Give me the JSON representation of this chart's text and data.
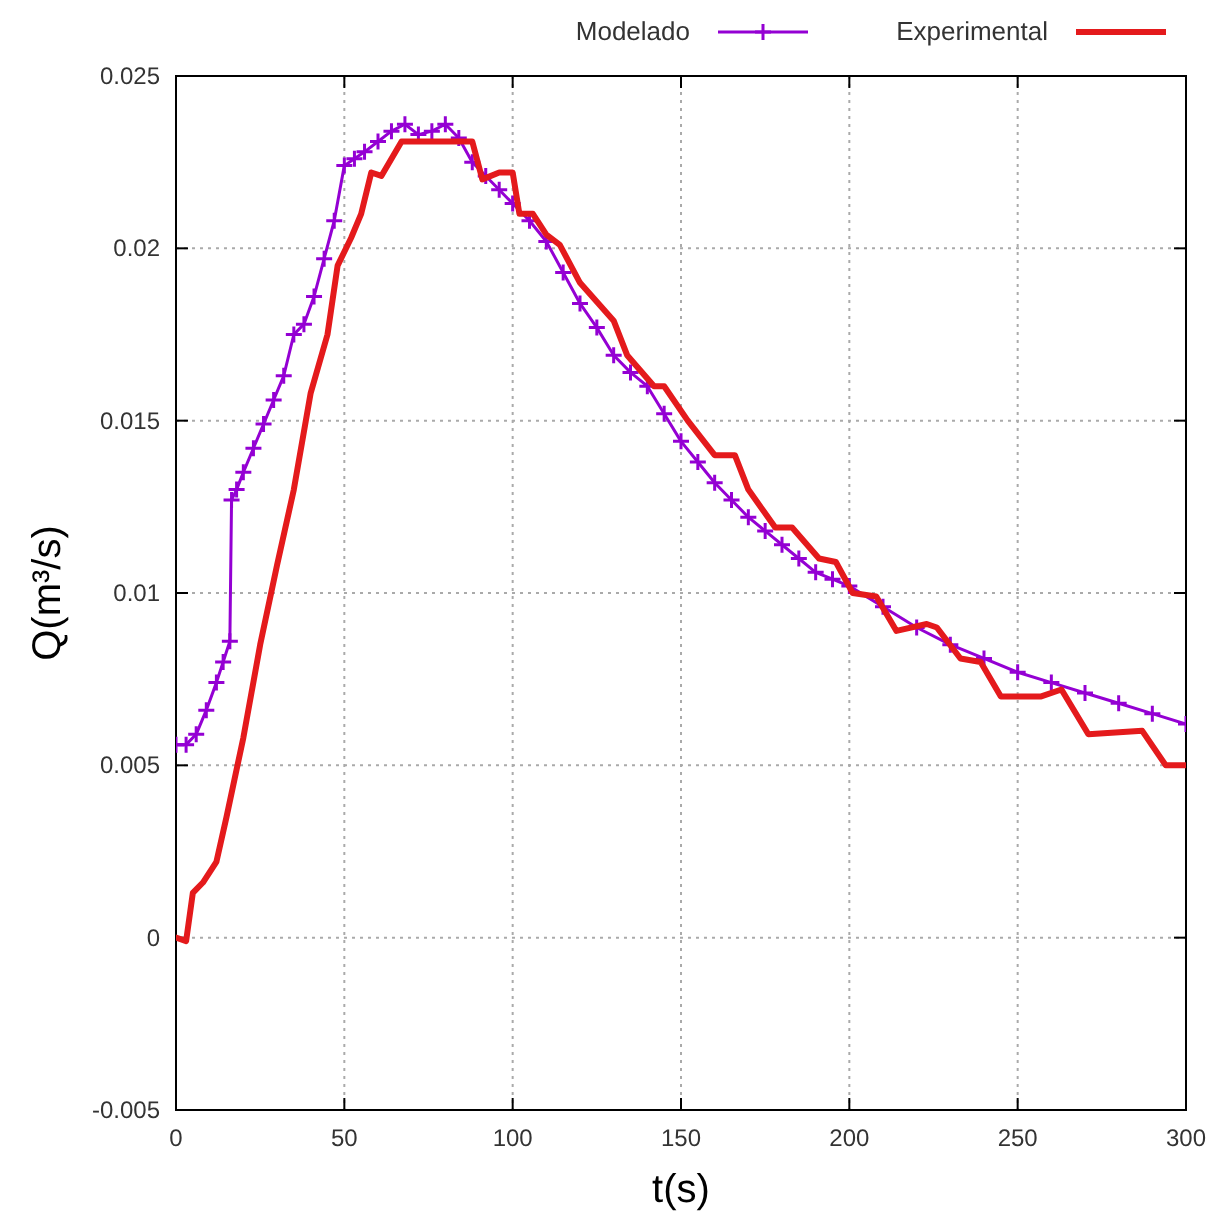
{
  "chart_data": {
    "type": "line",
    "xlabel": "t(s)",
    "ylabel": "Q(m³/s)",
    "xlim": [
      0,
      300
    ],
    "ylim": [
      -0.005,
      0.025
    ],
    "xticks": [
      0,
      50,
      100,
      150,
      200,
      250,
      300
    ],
    "yticks": [
      -0.005,
      0,
      0.005,
      0.01,
      0.015,
      0.02,
      0.025
    ],
    "grid": true,
    "legend": "top right",
    "line_style": "solid",
    "series": [
      {
        "name": "Modelado",
        "color": "#9400d3",
        "marker": "cross",
        "x": [
          0,
          3,
          6,
          9,
          12,
          14,
          16,
          16.5,
          18,
          20,
          23,
          26,
          29,
          32,
          35,
          38,
          41,
          44,
          47,
          50,
          53,
          56,
          60,
          64,
          68,
          72,
          76,
          80,
          84,
          88,
          92,
          96,
          100,
          105,
          110,
          115,
          120,
          125,
          130,
          135,
          140,
          145,
          150,
          155,
          160,
          165,
          170,
          175,
          180,
          185,
          190,
          195,
          200,
          210,
          220,
          230,
          240,
          250,
          260,
          270,
          280,
          290,
          300
        ],
        "values": [
          0.0056,
          0.0056,
          0.0059,
          0.0066,
          0.0074,
          0.008,
          0.0086,
          0.0127,
          0.013,
          0.0135,
          0.0142,
          0.0149,
          0.0156,
          0.0163,
          0.0175,
          0.0178,
          0.0186,
          0.0197,
          0.0208,
          0.0224,
          0.0226,
          0.0228,
          0.0231,
          0.0234,
          0.0236,
          0.0233,
          0.0234,
          0.0236,
          0.0232,
          0.0225,
          0.0221,
          0.0217,
          0.0213,
          0.0208,
          0.0202,
          0.0193,
          0.0184,
          0.0177,
          0.0169,
          0.0164,
          0.016,
          0.0152,
          0.0144,
          0.0138,
          0.0132,
          0.0127,
          0.0122,
          0.0118,
          0.0114,
          0.011,
          0.0106,
          0.0104,
          0.0102,
          0.0096,
          0.009,
          0.0085,
          0.0081,
          0.0077,
          0.0074,
          0.0071,
          0.0068,
          0.0065,
          0.0062
        ]
      },
      {
        "name": "Experimental",
        "color": "#e41a1c",
        "marker": "none",
        "x": [
          0,
          3,
          5,
          8,
          12,
          15,
          20,
          25,
          30,
          35,
          40,
          45,
          48,
          52,
          55,
          58,
          61,
          67,
          88,
          91,
          96,
          100,
          102,
          106,
          110,
          114,
          120,
          130,
          134,
          142,
          145,
          152,
          160,
          166,
          170,
          178,
          183,
          191,
          196,
          201,
          208,
          214,
          223,
          226,
          233,
          239,
          245,
          257,
          263,
          271,
          287,
          294,
          300
        ],
        "values": [
          0,
          -0.0001,
          0.0013,
          0.0016,
          0.0022,
          0.0035,
          0.0058,
          0.0085,
          0.0108,
          0.013,
          0.0158,
          0.0175,
          0.0195,
          0.0203,
          0.021,
          0.0222,
          0.0221,
          0.0231,
          0.0231,
          0.022,
          0.0222,
          0.0222,
          0.021,
          0.021,
          0.0204,
          0.0201,
          0.019,
          0.0179,
          0.0169,
          0.016,
          0.016,
          0.015,
          0.014,
          0.014,
          0.013,
          0.0119,
          0.0119,
          0.011,
          0.0109,
          0.01,
          0.0099,
          0.0089,
          0.0091,
          0.009,
          0.0081,
          0.008,
          0.007,
          0.007,
          0.0072,
          0.0059,
          0.006,
          0.005,
          0.005
        ]
      }
    ]
  }
}
